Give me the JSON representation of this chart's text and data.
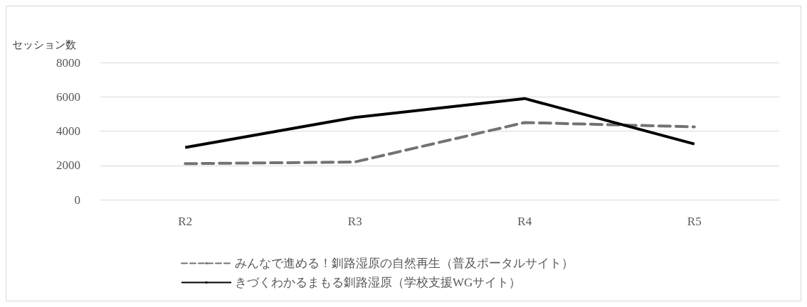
{
  "chart_data": {
    "type": "line",
    "ylabel": "セッション数",
    "categories": [
      "R2",
      "R3",
      "R4",
      "R5"
    ],
    "series": [
      {
        "name": "みんなで進める！釧路湿原の自然再生（普及ポータルサイト）",
        "color": "#767171",
        "line_style": "dashed",
        "values": [
          2100,
          2200,
          4500,
          4250
        ]
      },
      {
        "name": "きづくわかるまもる釧路湿原（学校支援WGサイト）",
        "color": "#000000",
        "line_style": "solid",
        "values": [
          3050,
          4800,
          5900,
          3250
        ]
      }
    ],
    "ylim": [
      0,
      8000
    ],
    "yticks": [
      0,
      2000,
      4000,
      6000,
      8000
    ],
    "grid": "y",
    "legend": "bottom",
    "marker": "none"
  }
}
